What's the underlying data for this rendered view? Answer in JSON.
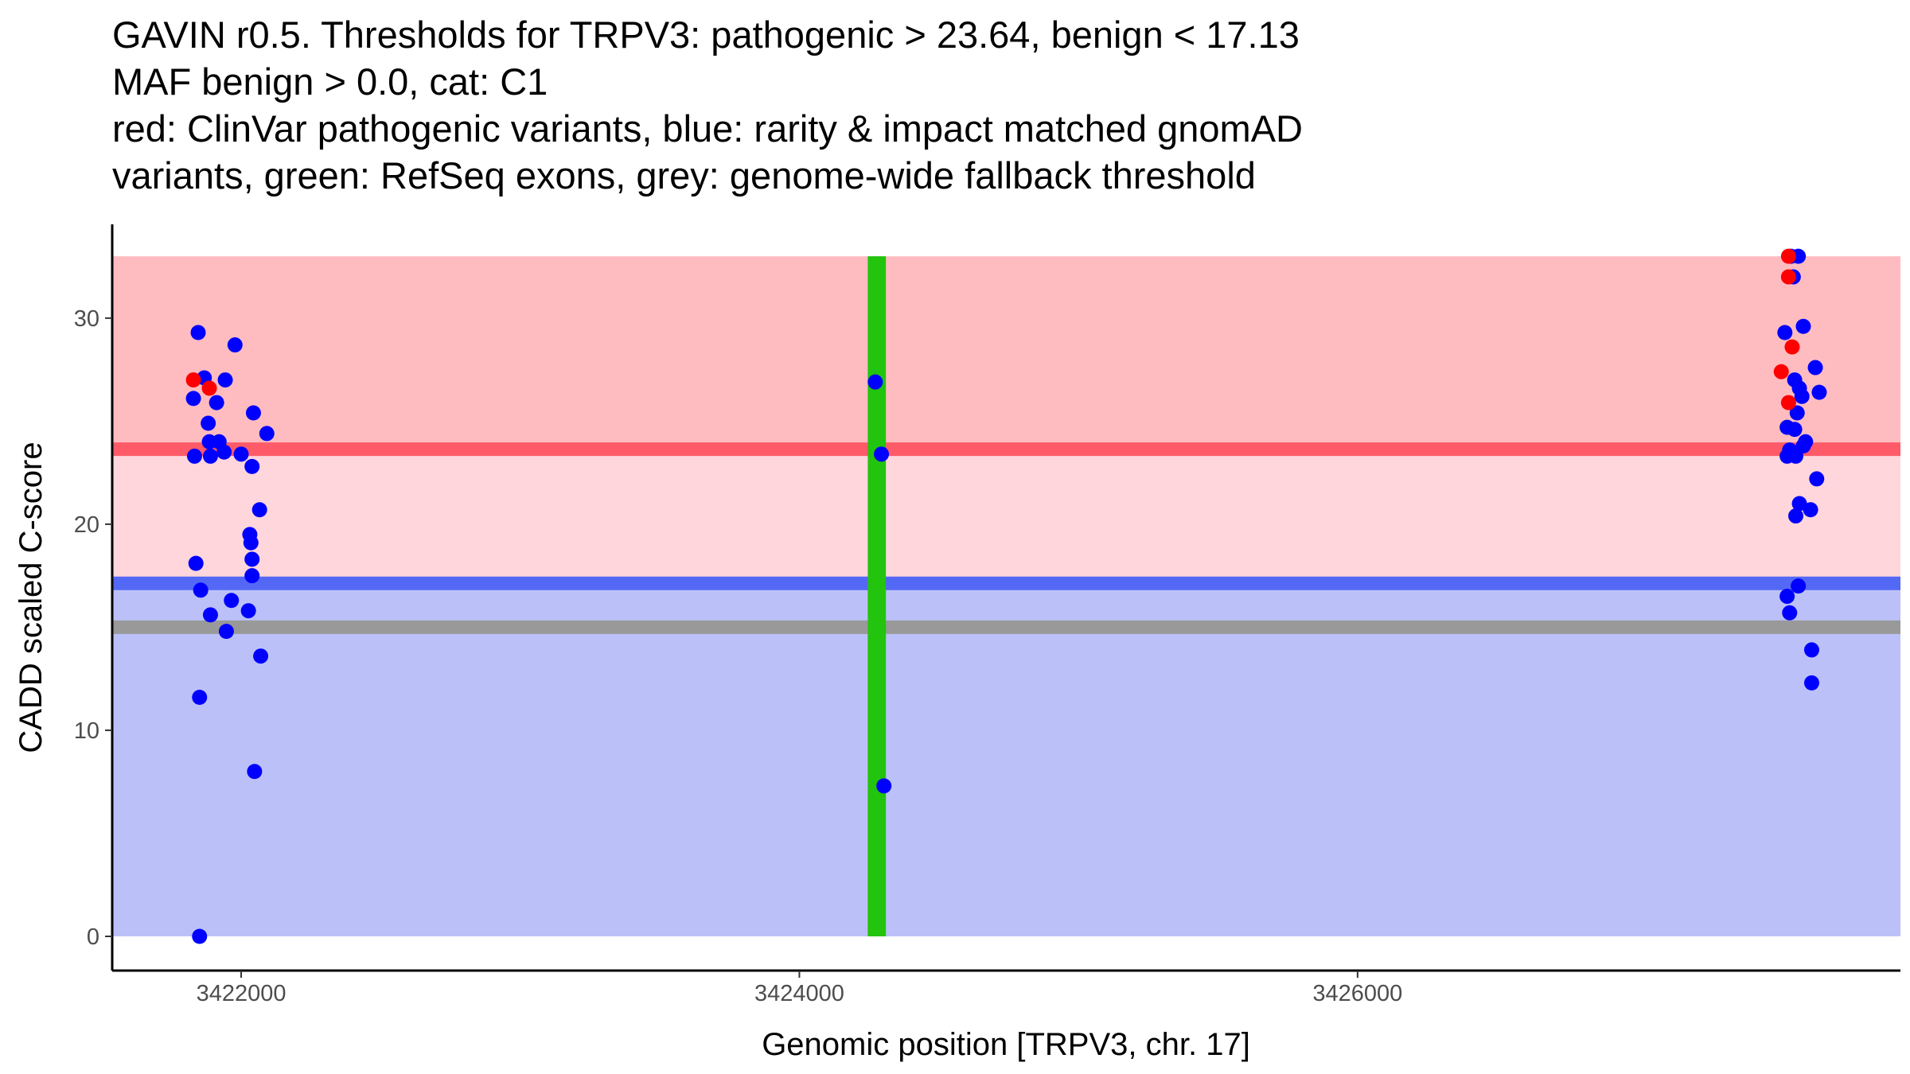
{
  "chart_data": {
    "type": "scatter",
    "title_lines": [
      "GAVIN r0.5. Thresholds for TRPV3: pathogenic > 23.64, benign < 17.13",
      "MAF benign > 0.0, cat: C1",
      "red: ClinVar pathogenic variants, blue: rarity & impact matched gnomAD",
      "variants, green: RefSeq exons, grey: genome-wide fallback threshold"
    ],
    "xlabel": "Genomic position [TRPV3, chr. 17]",
    "ylabel": "CADD scaled C-score",
    "xlim": [
      3421538,
      3427945
    ],
    "ylim": [
      -1.66,
      34.55
    ],
    "xticks": [
      3422000,
      3424000,
      3426000
    ],
    "xtick_labels": [
      "3422000",
      "3424000",
      "3426000"
    ],
    "yticks": [
      0,
      10,
      20,
      30
    ],
    "ytick_labels": [
      "0",
      "10",
      "20",
      "30"
    ],
    "grid": false,
    "thresholds": {
      "pathogenic": 23.64,
      "benign": 17.13,
      "fallback": 15.0,
      "max": 33.0
    },
    "colors": {
      "pathogenic_band": "#ffbcc0",
      "middle_band": "#ffd6db",
      "benign_band": "#bbc1f8",
      "pathogenic_line": "#ff5a68",
      "benign_line": "#5368f5",
      "fallback_line": "#999999",
      "exon": "#22c40d",
      "clinvar": "#ff0000",
      "gnomad": "#0000ff"
    },
    "exons": [
      {
        "start": 3424245,
        "end": 3424310
      }
    ],
    "series": [
      {
        "name": "gnomAD",
        "color_key": "gnomad",
        "points": [
          [
            3421846,
            29.3
          ],
          [
            3421978,
            28.7
          ],
          [
            3421868,
            27.1
          ],
          [
            3421943,
            27.0
          ],
          [
            3421829,
            26.1
          ],
          [
            3421912,
            25.9
          ],
          [
            3422044,
            25.4
          ],
          [
            3421882,
            24.9
          ],
          [
            3422092,
            24.4
          ],
          [
            3421886,
            24.0
          ],
          [
            3421921,
            24.0
          ],
          [
            3421939,
            23.5
          ],
          [
            3422000,
            23.4
          ],
          [
            3421833,
            23.3
          ],
          [
            3421890,
            23.3
          ],
          [
            3422039,
            22.8
          ],
          [
            3422066,
            20.7
          ],
          [
            3422031,
            19.5
          ],
          [
            3422035,
            19.1
          ],
          [
            3422039,
            18.3
          ],
          [
            3421838,
            18.1
          ],
          [
            3422039,
            17.5
          ],
          [
            3421855,
            16.8
          ],
          [
            3421965,
            16.3
          ],
          [
            3421890,
            15.6
          ],
          [
            3422026,
            15.8
          ],
          [
            3421947,
            14.8
          ],
          [
            3422070,
            13.6
          ],
          [
            3421851,
            11.6
          ],
          [
            3422048,
            8.0
          ],
          [
            3421851,
            0.0
          ],
          [
            3424272,
            26.9
          ],
          [
            3424294,
            23.4
          ],
          [
            3424303,
            7.3
          ],
          [
            3427579,
            33.0
          ],
          [
            3427553,
            33.0
          ],
          [
            3427561,
            32.0
          ],
          [
            3427531,
            29.3
          ],
          [
            3427597,
            29.6
          ],
          [
            3427640,
            27.6
          ],
          [
            3427566,
            27.0
          ],
          [
            3427583,
            26.6
          ],
          [
            3427592,
            26.2
          ],
          [
            3427654,
            26.4
          ],
          [
            3427575,
            25.4
          ],
          [
            3427539,
            24.7
          ],
          [
            3427566,
            24.6
          ],
          [
            3427605,
            24.0
          ],
          [
            3427597,
            23.8
          ],
          [
            3427548,
            23.6
          ],
          [
            3427570,
            23.3
          ],
          [
            3427539,
            23.3
          ],
          [
            3427645,
            22.2
          ],
          [
            3427583,
            21.0
          ],
          [
            3427570,
            20.4
          ],
          [
            3427623,
            20.7
          ],
          [
            3427579,
            17.0
          ],
          [
            3427539,
            16.5
          ],
          [
            3427548,
            15.7
          ],
          [
            3427627,
            13.9
          ],
          [
            3427627,
            12.3
          ]
        ]
      },
      {
        "name": "ClinVar pathogenic",
        "color_key": "clinvar",
        "points": [
          [
            3421829,
            27.0
          ],
          [
            3421886,
            26.6
          ],
          [
            3427544,
            33.0
          ],
          [
            3427544,
            32.0
          ],
          [
            3427557,
            28.6
          ],
          [
            3427518,
            27.4
          ],
          [
            3427544,
            25.9
          ]
        ]
      }
    ]
  }
}
